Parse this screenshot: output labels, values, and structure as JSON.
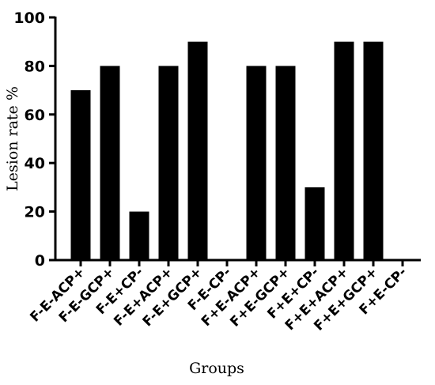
{
  "chart_data": {
    "type": "bar",
    "title": "",
    "xlabel": "Groups",
    "ylabel": "Lesion rate %",
    "ylim": [
      0,
      100
    ],
    "yticks": [
      0,
      20,
      40,
      60,
      80,
      100
    ],
    "categories": [
      "F-E-ACP+",
      "F-E-GCP+",
      "F-E+CP-",
      "F-E+ACP+",
      "F-E+GCP+",
      "F-E-CP-",
      "F+E-ACP+",
      "F+E-GCP+",
      "F+E+CP-",
      "F+E+ACP+",
      "F+E+GCP+",
      "F+E-CP-"
    ],
    "values": [
      70,
      80,
      20,
      80,
      90,
      0,
      80,
      80,
      30,
      90,
      90,
      0
    ],
    "bar_color": "#000000",
    "grid": false,
    "legend": "none"
  }
}
